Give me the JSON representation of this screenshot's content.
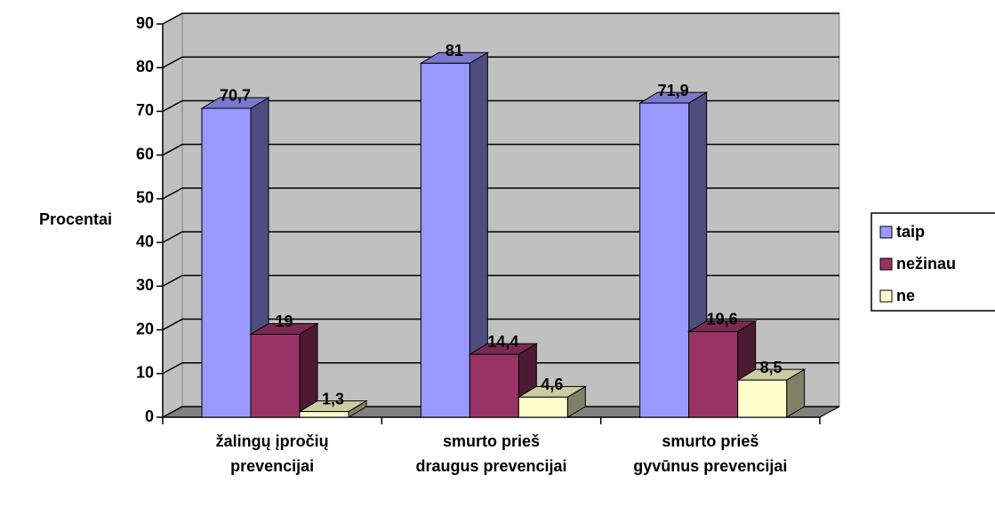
{
  "chart_data": {
    "type": "bar3d",
    "y_label": "Procentai",
    "categories": [
      "žalingų įpročių prevencijai",
      "smurto prieš draugus prevencijai",
      "smurto prieš gyvūnus prevencijai"
    ],
    "series": [
      {
        "name": "taip",
        "color": "#9999ff",
        "values": [
          70.7,
          81,
          71.9
        ],
        "value_labels": [
          "70,7",
          "81",
          "71,9"
        ]
      },
      {
        "name": "nežinau",
        "color": "#993366",
        "values": [
          19,
          14.4,
          19.6
        ],
        "value_labels": [
          "19",
          "14,4",
          "19,6"
        ]
      },
      {
        "name": "ne",
        "color": "#ffffcc",
        "values": [
          1.3,
          4.6,
          8.5
        ],
        "value_labels": [
          "1,3",
          "4,6",
          "8,5"
        ]
      }
    ],
    "ylim": [
      0,
      90
    ],
    "yticks": [
      0,
      10,
      20,
      30,
      40,
      50,
      60,
      70,
      80,
      90
    ],
    "grid": true,
    "legend": "right"
  }
}
